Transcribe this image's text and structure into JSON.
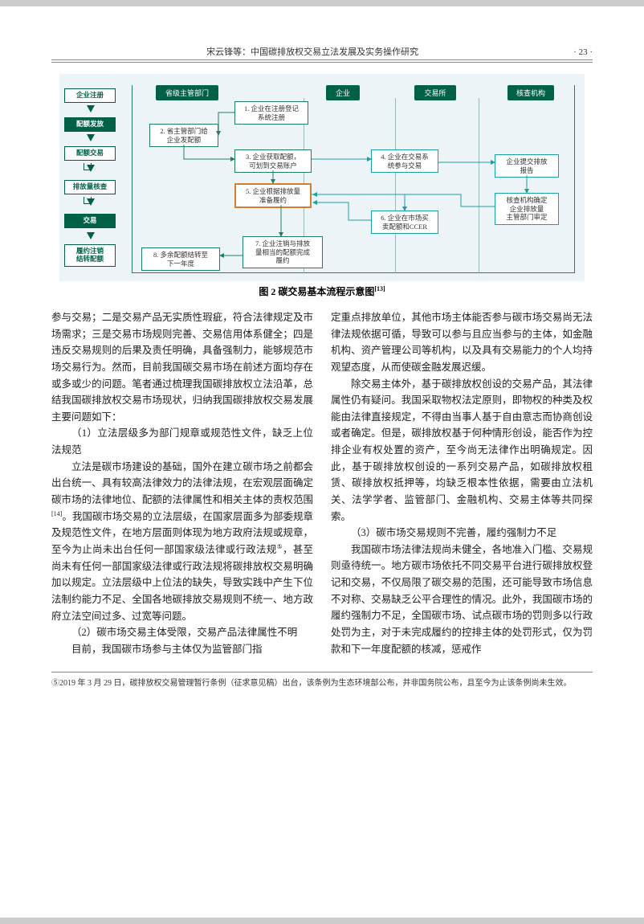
{
  "header": {
    "title": "宋云锋等：中国碳排放权交易立法发展及实务操作研究",
    "page": "· 23 ·"
  },
  "fig": {
    "caption": "图 2  碳交易基本流程示意图",
    "caption_ref": "[13]",
    "colors": {
      "bg": "#edf4f7",
      "primary_green": "#016147",
      "box_green": "#208060",
      "box_cyan": "#1aa0a0",
      "orange": "#d08030"
    },
    "col_headers": [
      "省级主管部门",
      "企业",
      "交易所",
      "核查机构"
    ],
    "left_boxes": [
      {
        "label": "企业注册",
        "active": false
      },
      {
        "label": "配额发放",
        "active": true
      },
      {
        "label": "配额交易",
        "active": false
      },
      {
        "label": "排放量核查",
        "active": false
      },
      {
        "label": "交易",
        "active": true
      },
      {
        "label": "履约注销\n结转配额",
        "active": false
      }
    ],
    "boxes": {
      "b1": "1. 企业在注册登记\n系统注册",
      "b2": "2. 省主管部门给\n企业发配额",
      "b3": "3. 企业获取配额，\n可划到交易账户",
      "b4": "4. 企业在交易系\n统参与交易",
      "b5": "5. 企业根据排放量\n准备履约",
      "b6": "6. 企业在市场买\n卖配额和CCER",
      "b7": "7. 企业注销与排放\n量相当的配额完成\n履约",
      "b8": "8. 多余配额结转至\n下一年度",
      "r1": "企业提交排放\n报告",
      "r2": "核查机构确定\n企业排放量\n主管部门审定"
    }
  },
  "body": {
    "left": [
      "参与交易；二是交易产品无实质性瑕疵，符合法律规定及市场需求；三是交易市场规则完善、交易信用体系健全；四是违反交易规则的后果及责任明确，具备强制力，能够规范市场交易行为。然而，目前我国碳交易市场在前述方面均存在或多或少的问题。笔者通过梳理我国碳排放权立法沿革，总结我国碳排放权交易市场现状，归纳我国碳排放权交易发展主要问题如下：",
      "（1）立法层级多为部门规章或规范性文件，缺乏上位法规范",
      "立法是碳市场建设的基础，国外在建立碳市场之前都会出台统一、具有较高法律效力的法律法规，在宏观层面确定碳市场的法律地位、配额的法律属性和相关主体的责权范围[14]。我国碳市场交易的立法层级，在国家层面多为部委规章及规范性文件，在地方层面则体现为地方政府法规或规章，至今为止尚未出台任何一部国家级法律或行政法规⑤，甚至尚未有任何一部国家级法律或行政法规将碳排放权交易明确加以规定。立法层级中上位法的缺失，导致实践中产生下位法制约能力不足、全国各地碳排放交易规则不统一、地方政府立法空间过多、过宽等问题。",
      "（2）碳市场交易主体受限，交易产品法律属性不明",
      "目前，我国碳市场参与主体仅为监管部门指"
    ],
    "right": [
      "定重点排放单位，其他市场主体能否参与碳市场交易尚无法律法规依据可循，导致可以参与且应当参与的主体，如金融机构、资产管理公司等机构，以及具有交易能力的个人均持观望态度，从而使碳金融发展迟缓。",
      "除交易主体外，基于碳排放权创设的交易产品，其法律属性仍有疑问。我国采取物权法定原则，即物权的种类及权能由法律直接规定，不得由当事人基于自由意志而协商创设或者确定。但是，碳排放权基于何种情形创设，能否作为控排企业有权处置的资产，至今尚无法律作出明确规定。因此，基于碳排放权创设的一系列交易产品，如碳排放权租赁、碳排放权抵押等，均缺乏根本性依据，需要由立法机关、法学学者、监管部门、金融机构、交易主体等共同探索。",
      "（3）碳市场交易规则不完善，履约强制力不足",
      "我国碳市场法律法规尚未健全，各地准入门槛、交易规则亟待统一。地方碳市场依托不同交易平台进行碳排放权登记和交易，不仅局限了碳交易的范围，还可能导致市场信息不对称、交易缺乏公平合理性的情况。此外，我国碳市场的履约强制力不足，全国碳市场、试点碳市场的罚则多以行政处罚为主，对于未完成履约的控排主体的处罚形式，仅为罚款和下一年度配额的核减，惩戒作"
    ]
  },
  "footnote": {
    "marker": "⑤",
    "text": "2019 年 3 月 29 日，碳排放权交易管理暂行条例（征求意见稿）出台，该条例为生态环境部公布，并非国务院公布，且至今为止该条例尚未生效。"
  }
}
